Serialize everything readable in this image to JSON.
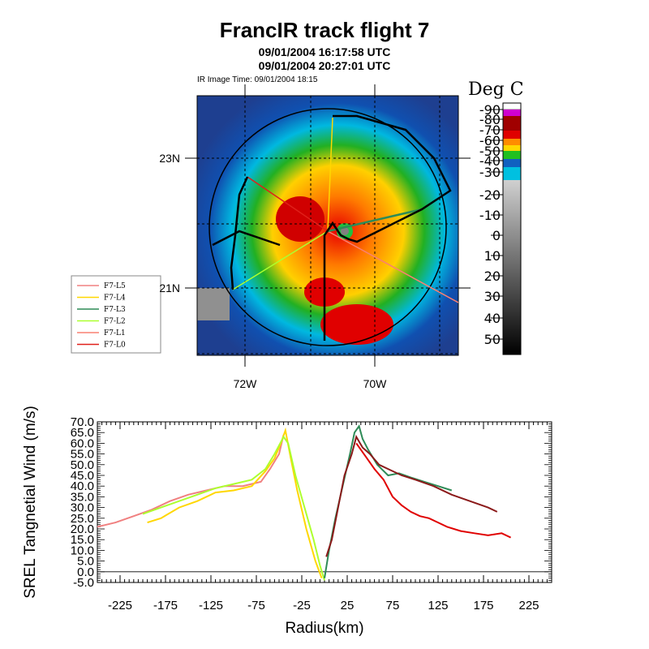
{
  "header": {
    "title": "FrancIR track flight 7",
    "start_time": "09/01/2004 16:17:58 UTC",
    "end_time": "09/01/2004 20:27:01 UTC",
    "ir_time": "IR Image Time: 09/01/2004 18:15"
  },
  "map": {
    "lat_labels": [
      "23N",
      "21N"
    ],
    "lon_labels": [
      "72W",
      "70W"
    ],
    "legend": [
      "F7-L5",
      "F7-L4",
      "F7-L3",
      "F7-L2",
      "F7-L1",
      "F7-L0"
    ],
    "legend_colors": [
      "#f08080",
      "#ffd700",
      "#2e8b57",
      "#adff2f",
      "#fa8072",
      "#e0201a"
    ],
    "colorbar_title": "Deg C",
    "colorbar_ticks": [
      "-90",
      "-80",
      "-70",
      "-60",
      "-50",
      "-40",
      "-30",
      "-20",
      "-10",
      "0",
      "10",
      "20",
      "30",
      "40",
      "50"
    ],
    "colorbar_colors": [
      "#ffffff",
      "#d000d0",
      "#a00000",
      "#e00000",
      "#ff8c00",
      "#ffd700",
      "#20c020",
      "#1060c0",
      "#00c0e0"
    ]
  },
  "chart_data": {
    "type": "line",
    "title": "",
    "xlabel": "Radius(km)",
    "ylabel": "SREL Tangnetial Wind (m/s)",
    "xlim": [
      -250,
      250
    ],
    "ylim": [
      -5,
      70
    ],
    "xticks": [
      -225,
      -175,
      -125,
      -75,
      -25,
      25,
      75,
      125,
      175,
      225
    ],
    "yticks": [
      "-5.0",
      "0.0",
      "5.0",
      "10.0",
      "15.0",
      "20.0",
      "25.0",
      "30.0",
      "35.0",
      "40.0",
      "45.0",
      "50.0",
      "55.0",
      "60.0",
      "65.0",
      "70.0"
    ],
    "series": [
      {
        "color": "#f08080",
        "x": [
          -250,
          -230,
          -210,
          -190,
          -170,
          -150,
          -130,
          -110,
          -90,
          -70,
          -60,
          -50,
          -45
        ],
        "y": [
          21,
          23,
          26,
          29,
          33,
          36,
          38,
          40,
          40,
          42,
          48,
          55,
          64
        ]
      },
      {
        "color": "#ffd700",
        "x": [
          -195,
          -180,
          -160,
          -140,
          -120,
          -100,
          -80,
          -65,
          -55,
          -48,
          -43,
          -38,
          -30,
          -20,
          -10,
          -3
        ],
        "y": [
          23,
          25,
          30,
          33,
          37,
          38,
          40,
          47,
          53,
          60,
          66,
          55,
          38,
          20,
          5,
          -3
        ]
      },
      {
        "color": "#adff2f",
        "x": [
          -200,
          -180,
          -160,
          -140,
          -120,
          -100,
          -80,
          -65,
          -55,
          -45,
          -40,
          -32,
          -22,
          -12,
          -5,
          0
        ],
        "y": [
          27,
          30,
          33,
          36,
          39,
          41,
          43,
          48,
          55,
          63,
          60,
          45,
          30,
          15,
          3,
          -4
        ]
      },
      {
        "color": "#2e8b57",
        "x": [
          0,
          5,
          12,
          20,
          28,
          33,
          38,
          42,
          48,
          58,
          70,
          82,
          95,
          110,
          125,
          140
        ],
        "y": [
          -3,
          10,
          25,
          40,
          55,
          65,
          68,
          62,
          57,
          50,
          45,
          46,
          44,
          42,
          40,
          38
        ]
      },
      {
        "color": "#8b1a1a",
        "x": [
          2,
          8,
          15,
          22,
          30,
          35,
          42,
          50,
          60,
          70,
          85,
          100,
          120,
          140,
          160,
          180,
          190
        ],
        "y": [
          7,
          15,
          30,
          45,
          55,
          63,
          58,
          55,
          50,
          48,
          45,
          43,
          40,
          36,
          33,
          30,
          28
        ]
      },
      {
        "color": "#e00000",
        "x": [
          35,
          45,
          55,
          65,
          75,
          85,
          95,
          105,
          115,
          125,
          135,
          150,
          165,
          180,
          195,
          205
        ],
        "y": [
          60,
          54,
          48,
          43,
          35,
          31,
          28,
          26,
          25,
          23,
          21,
          19,
          18,
          17,
          18,
          16
        ]
      }
    ]
  }
}
